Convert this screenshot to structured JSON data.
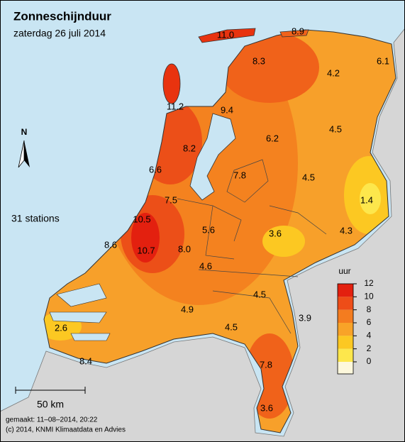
{
  "header": {
    "title": "Zonneschijnduur",
    "subtitle": "zaterdag 26 juli 2014"
  },
  "north": "N",
  "station_count": "31 stations",
  "stations": [
    "11.0",
    "8.9",
    "8.3",
    "6.1",
    "4.2",
    "11.2",
    "9.4",
    "4.5",
    "6.2",
    "8.2",
    "6.6",
    "7.8",
    "4.5",
    "1.4",
    "7.5",
    "10.5",
    "5.6",
    "3.6",
    "4.3",
    "8.6",
    "10.7",
    "8.0",
    "4.6",
    "4.5",
    "4.9",
    "3.9",
    "2.6",
    "4.5",
    "7.8",
    "8.4",
    "3.6"
  ],
  "legend": {
    "unit": "uur",
    "ticks": [
      12,
      10,
      8,
      6,
      4,
      2,
      0
    ],
    "colors": [
      "#e3200f",
      "#ee4d18",
      "#f47c1f",
      "#f8a328",
      "#fcc822",
      "#fde74c",
      "#fdf8dc"
    ]
  },
  "scale_bar": "50 km",
  "footer": {
    "made": "gemaakt: 11–08–2014, 20:22",
    "copyright": "(c) 2014, KNMI Klimaatdata en Advies"
  }
}
